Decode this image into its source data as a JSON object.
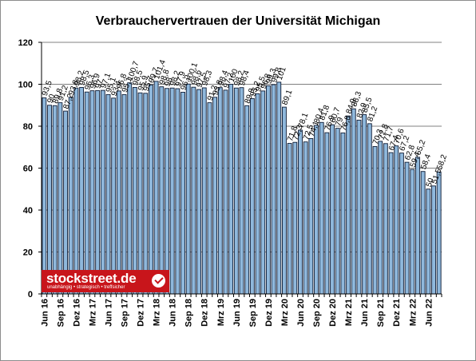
{
  "chart_data": {
    "type": "bar",
    "title": "Verbrauchervertrauen der Universität Michigan",
    "ylim": [
      0,
      120
    ],
    "yticks": [
      "0",
      "20",
      "40",
      "60",
      "80",
      "100",
      "120"
    ],
    "grid": true,
    "colors": {
      "bar": "#8fb8dc",
      "bar_edge": "#0d1a33",
      "grid": "#808080"
    },
    "categories": [
      "Jun 16",
      "Jul 16",
      "Aug 16",
      "Sep 16",
      "Okt 16",
      "Nov 16",
      "Dez 16",
      "Jan 17",
      "Feb 17",
      "Mrz 17",
      "Apr 17",
      "Mai 17",
      "Jun 17",
      "Jul 17",
      "Aug 17",
      "Sep 17",
      "Okt 17",
      "Nov 17",
      "Dez 17",
      "Jan 18",
      "Feb 18",
      "Mrz 18",
      "Apr 18",
      "Mai 18",
      "Jun 18",
      "Jul 18",
      "Aug 18",
      "Sep 18",
      "Okt 18",
      "Nov 18",
      "Dez 18",
      "Jan 19",
      "Feb 19",
      "Mrz 19",
      "Apr 19",
      "Mai 19",
      "Jun 19",
      "Jul 19",
      "Aug 19",
      "Sep 19",
      "Okt 19",
      "Nov 19",
      "Dez 19",
      "Jan 20",
      "Feb 20",
      "Mrz 20",
      "Apr 20",
      "Mai 20",
      "Jun 20",
      "Jul 20",
      "Aug 20",
      "Sep 20",
      "Okt 20",
      "Nov 20",
      "Dez 20",
      "Jan 21",
      "Feb 21",
      "Mrz 21",
      "Apr 21",
      "Mai 21",
      "Jun 21",
      "Jul 21",
      "Aug 21",
      "Sep 21",
      "Okt 21",
      "Nov 21",
      "Dez 21",
      "Jan 22",
      "Feb 22",
      "Mrz 22",
      "Apr 22",
      "Mai 22",
      "Jun 22",
      "Jul 22",
      "Aug 22"
    ],
    "xtick_labels": [
      "Jun 16",
      "Sep 16",
      "Dez 16",
      "Mrz 17",
      "Jun 17",
      "Sep 17",
      "Dez 17",
      "Mrz 18",
      "Jun 18",
      "Sep 18",
      "Dez 18",
      "Mrz 19",
      "Jun 19",
      "Sep 19",
      "Dez 19",
      "Mrz 20",
      "Jun 20",
      "Sep 20",
      "Dez 20",
      "Mrz 21",
      "Jun 21",
      "Sep 21",
      "Dez 21",
      "Mrz 22",
      "Jun 22"
    ],
    "values": [
      93.5,
      90,
      89.8,
      91.2,
      87.2,
      93.8,
      98.2,
      98.5,
      96.3,
      96.9,
      97,
      97.1,
      95.1,
      93.4,
      96.8,
      95.1,
      100.7,
      98.5,
      95.9,
      95.7,
      99.7,
      101.4,
      98.8,
      98,
      98.2,
      97.9,
      96.2,
      100.1,
      98.6,
      97.5,
      98.3,
      91.2,
      93.8,
      98.4,
      97.2,
      100,
      98.2,
      98.4,
      89.8,
      93.2,
      95.5,
      96.8,
      99.3,
      99.8,
      101,
      89.1,
      71.8,
      72.3,
      78.1,
      72.5,
      74.1,
      80.4,
      81.8,
      76.9,
      80.7,
      79,
      76.8,
      84.9,
      88.3,
      82.9,
      85.5,
      81.2,
      70.3,
      72.8,
      71.7,
      67.4,
      70.6,
      67.2,
      62.8,
      59.4,
      65.2,
      58.4,
      50,
      51.5,
      58.2
    ]
  },
  "logo": {
    "name": "stockstreet.de",
    "tagline": "unabhängig • strategisch • treffsicher"
  }
}
